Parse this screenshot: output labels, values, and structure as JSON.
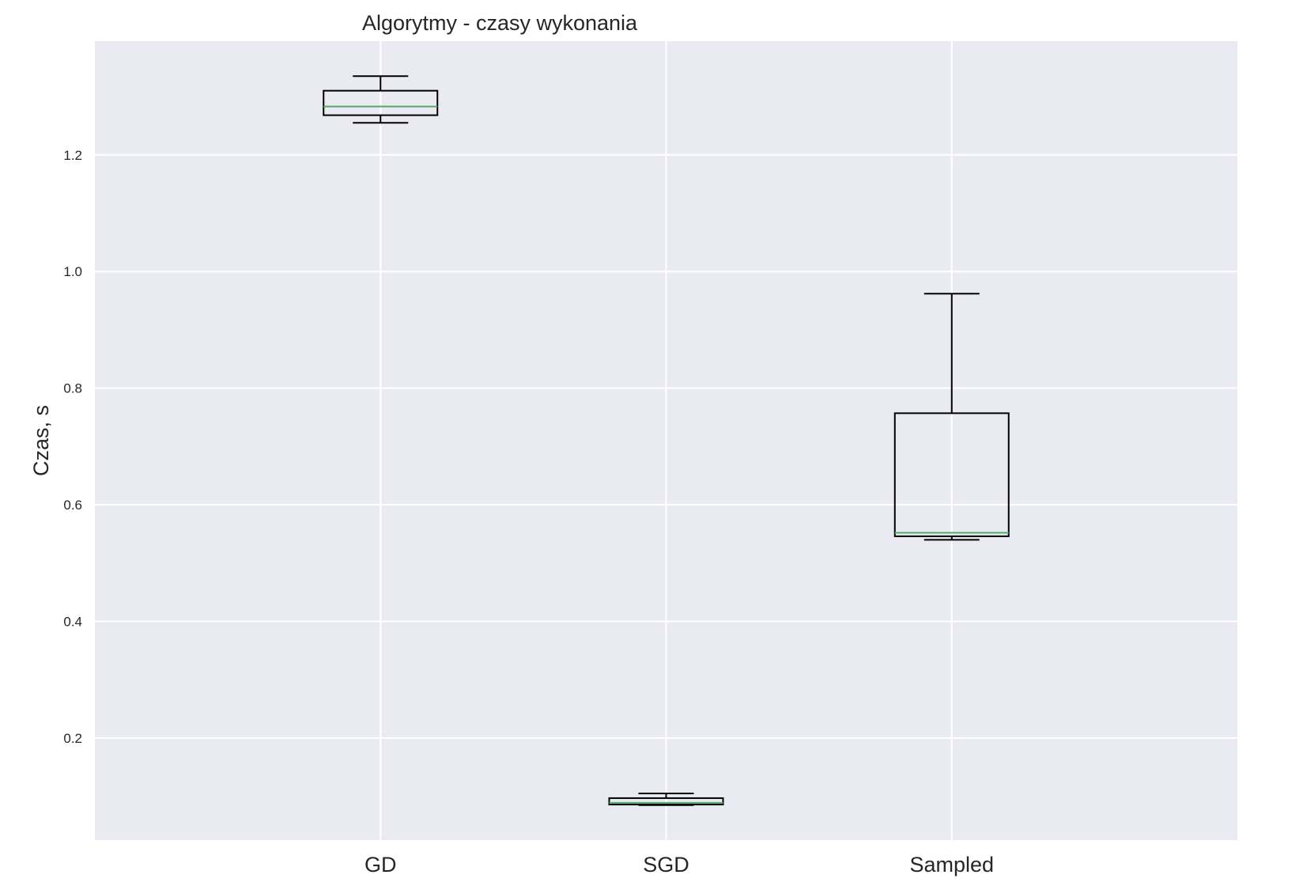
{
  "chart_data": {
    "type": "boxplot",
    "title": "Algorytmy - czasy wykonania",
    "xlabel": "",
    "ylabel": "Czas, s",
    "categories": [
      "GD",
      "SGD",
      "Sampled"
    ],
    "boxes": [
      {
        "label": "GD",
        "whisker_low": 1.255,
        "q1": 1.268,
        "median": 1.283,
        "q3": 1.31,
        "whisker_high": 1.335
      },
      {
        "label": "SGD",
        "whisker_low": 0.085,
        "q1": 0.086,
        "median": 0.089,
        "q3": 0.097,
        "whisker_high": 0.105
      },
      {
        "label": "Sampled",
        "whisker_low": 0.54,
        "q1": 0.546,
        "median": 0.552,
        "q3": 0.757,
        "whisker_high": 0.962
      }
    ],
    "ylim": [
      0.025,
      1.395
    ],
    "yticks": [
      0.2,
      0.4,
      0.6,
      0.8,
      1.0,
      1.2
    ],
    "ytick_labels": [
      "0.2",
      "0.4",
      "0.6",
      "0.8",
      "1.0",
      "1.2"
    ],
    "grid": true,
    "style": "seaborn-darkgrid",
    "colors": {
      "plot_background": "#EAEAF2",
      "grid": "#FFFFFF",
      "box_edge": "#000000",
      "median": "#55A868",
      "text": "#262626"
    }
  }
}
